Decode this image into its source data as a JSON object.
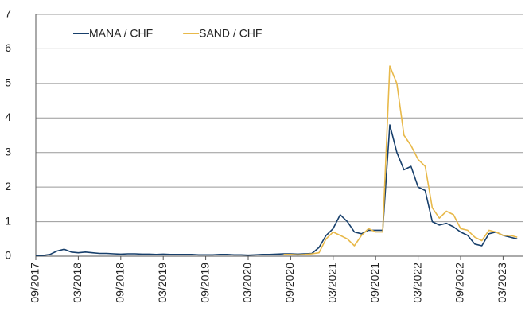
{
  "chart_data": {
    "type": "line",
    "x": [
      "09/2017",
      "10/2017",
      "11/2017",
      "12/2017",
      "01/2018",
      "02/2018",
      "03/2018",
      "04/2018",
      "05/2018",
      "06/2018",
      "07/2018",
      "08/2018",
      "09/2018",
      "10/2018",
      "11/2018",
      "12/2018",
      "01/2019",
      "02/2019",
      "03/2019",
      "04/2019",
      "05/2019",
      "06/2019",
      "07/2019",
      "08/2019",
      "09/2019",
      "10/2019",
      "11/2019",
      "12/2019",
      "01/2020",
      "02/2020",
      "03/2020",
      "04/2020",
      "05/2020",
      "06/2020",
      "07/2020",
      "08/2020",
      "09/2020",
      "10/2020",
      "11/2020",
      "12/2020",
      "01/2021",
      "02/2021",
      "03/2021",
      "04/2021",
      "05/2021",
      "06/2021",
      "07/2021",
      "08/2021",
      "09/2021",
      "10/2021",
      "11/2021",
      "12/2021",
      "01/2022",
      "02/2022",
      "03/2022",
      "04/2022",
      "05/2022",
      "06/2022",
      "07/2022",
      "08/2022",
      "09/2022",
      "10/2022",
      "11/2022",
      "12/2022",
      "01/2023",
      "02/2023",
      "03/2023",
      "04/2023",
      "05/2023"
    ],
    "series": [
      {
        "name": "MANA / CHF",
        "color": "#173f6b",
        "values": [
          0.02,
          0.02,
          0.05,
          0.15,
          0.2,
          0.12,
          0.1,
          0.12,
          0.1,
          0.08,
          0.08,
          0.07,
          0.06,
          0.07,
          0.07,
          0.06,
          0.06,
          0.05,
          0.06,
          0.05,
          0.05,
          0.05,
          0.05,
          0.04,
          0.04,
          0.04,
          0.05,
          0.05,
          0.04,
          0.04,
          0.03,
          0.04,
          0.05,
          0.05,
          0.06,
          0.07,
          0.07,
          0.06,
          0.07,
          0.08,
          0.25,
          0.6,
          0.8,
          1.2,
          1.0,
          0.7,
          0.65,
          0.75,
          0.75,
          0.75,
          3.8,
          3.0,
          2.5,
          2.6,
          2.0,
          1.9,
          1.0,
          0.9,
          0.95,
          0.85,
          0.7,
          0.6,
          0.35,
          0.3,
          0.65,
          0.7,
          0.6,
          0.55,
          0.5
        ]
      },
      {
        "name": "SAND / CHF",
        "color": "#e8b94a",
        "values": [
          null,
          null,
          null,
          null,
          null,
          null,
          null,
          null,
          null,
          null,
          null,
          null,
          null,
          null,
          null,
          null,
          null,
          null,
          null,
          null,
          null,
          null,
          null,
          null,
          null,
          null,
          null,
          null,
          null,
          null,
          null,
          null,
          null,
          null,
          null,
          0.05,
          0.05,
          0.04,
          0.05,
          0.07,
          0.1,
          0.5,
          0.7,
          0.6,
          0.5,
          0.3,
          0.6,
          0.8,
          0.7,
          0.7,
          5.5,
          5.0,
          3.5,
          3.2,
          2.8,
          2.6,
          1.4,
          1.1,
          1.3,
          1.2,
          0.8,
          0.75,
          0.55,
          0.45,
          0.75,
          0.7,
          0.6,
          0.6,
          0.55
        ]
      }
    ],
    "ylim": [
      0,
      7
    ],
    "yticks": [
      0,
      1,
      2,
      3,
      4,
      5,
      6,
      7
    ],
    "grid": true,
    "legend": "top-left"
  }
}
